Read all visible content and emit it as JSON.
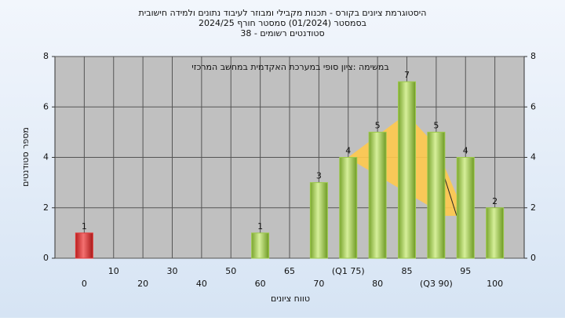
{
  "chart_data": {
    "type": "bar",
    "title": [
      "היסטוגרמת ציונים בקורס - תכנות מקבילי ומבוזר לעיבוד נתונים ולמידה חישובית",
      "בסמסטר  (01/2024)  סמסטר חורף 2024/25",
      "סטודנטים רשומים - 38"
    ],
    "annotation": "במשימה :ציון סופי במערכת האקדמית במחשב המרכזי",
    "x_label": "טווח ציונים",
    "y_label": "מספר סטודנטים",
    "categories": [
      "0",
      "10",
      "20",
      "30",
      "40",
      "50",
      "60",
      "65",
      "70",
      "(Q1 75)",
      "80",
      "85",
      "(Q3 90)",
      "95",
      "100"
    ],
    "values": [
      1,
      0,
      0,
      0,
      0,
      0,
      1,
      0,
      3,
      4,
      5,
      7,
      5,
      4,
      2
    ],
    "colors": [
      "#e23a3a",
      "#9cc94a",
      "#9cc94a",
      "#9cc94a",
      "#9cc94a",
      "#9cc94a",
      "#9cc94a",
      "#9cc94a",
      "#9cc94a",
      "#9cc94a",
      "#9cc94a",
      "#9cc94a",
      "#9cc94a",
      "#9cc94a",
      "#9cc94a"
    ],
    "ylim": [
      0,
      8
    ],
    "yticks": [
      0,
      2,
      4,
      6,
      8
    ],
    "grid": true
  }
}
